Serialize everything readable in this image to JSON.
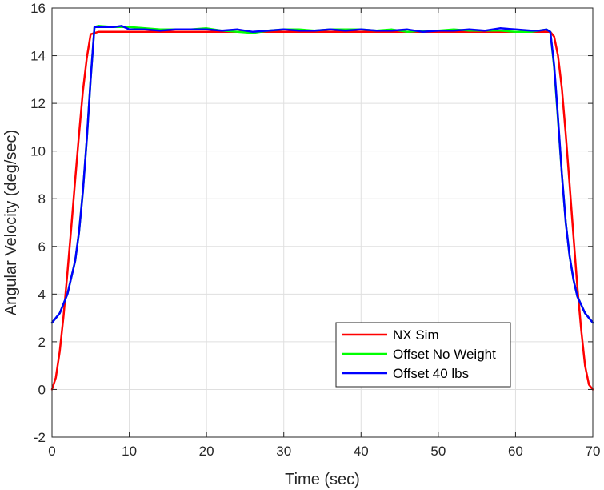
{
  "chart_data": {
    "type": "line",
    "title": "",
    "xlabel": "Time (sec)",
    "ylabel": "Angular Velocity (deg/sec)",
    "xlim": [
      0,
      70
    ],
    "ylim": [
      -2,
      16
    ],
    "xticks": [
      0,
      10,
      20,
      30,
      40,
      50,
      60,
      70
    ],
    "yticks": [
      -2,
      0,
      2,
      4,
      6,
      8,
      10,
      12,
      14,
      16
    ],
    "grid": true,
    "legend_position": "lower-right",
    "colors": {
      "axis": "#262626",
      "grid": "#dfdfdf",
      "background": "#ffffff"
    },
    "series": [
      {
        "name": "NX Sim",
        "color": "#ff0000",
        "x": [
          0,
          0.5,
          1,
          1.5,
          2,
          2.5,
          3,
          3.5,
          4,
          4.5,
          5,
          6,
          10,
          20,
          30,
          40,
          50,
          60,
          64.5,
          65,
          65.5,
          66,
          66.5,
          67,
          67.5,
          68,
          68.5,
          69,
          69.5,
          70
        ],
        "y": [
          0,
          0.5,
          1.6,
          3.1,
          4.9,
          6.8,
          8.8,
          10.7,
          12.5,
          13.9,
          14.9,
          15.0,
          15.0,
          15.0,
          15.0,
          15.0,
          15.0,
          15.0,
          15.0,
          14.8,
          14.0,
          12.6,
          10.7,
          8.6,
          6.4,
          4.3,
          2.5,
          1.0,
          0.2,
          0
        ]
      },
      {
        "name": "Offset No Weight",
        "color": "#00ff00",
        "x": [
          0,
          1,
          2,
          3,
          3.5,
          4,
          4.5,
          5,
          5.5,
          6,
          8,
          10,
          12,
          14,
          16,
          18,
          20,
          22,
          24,
          26,
          28,
          30,
          32,
          34,
          36,
          38,
          40,
          42,
          44,
          46,
          48,
          50,
          52,
          54,
          56,
          58,
          60,
          62,
          63,
          64,
          64.5,
          65,
          65.5,
          66,
          66.5,
          67,
          67.5,
          68,
          69,
          70
        ],
        "y": [
          2.8,
          3.2,
          4.0,
          5.4,
          6.6,
          8.3,
          10.5,
          13.0,
          15.2,
          15.25,
          15.2,
          15.2,
          15.15,
          15.1,
          15.1,
          15.1,
          15.15,
          15.05,
          15.0,
          14.95,
          15.05,
          15.1,
          15.1,
          15.05,
          15.1,
          15.1,
          15.1,
          15.05,
          15.1,
          15.0,
          15.05,
          15.05,
          15.1,
          15.05,
          15.05,
          15.05,
          15.0,
          15.0,
          15.05,
          15.1,
          15.0,
          13.5,
          11.3,
          9.0,
          7.0,
          5.6,
          4.6,
          3.9,
          3.2,
          2.8
        ]
      },
      {
        "name": "Offset 40 lbs",
        "color": "#0000ff",
        "x": [
          0,
          1,
          2,
          3,
          3.5,
          4,
          4.5,
          5,
          5.5,
          6,
          8,
          9,
          10,
          12,
          14,
          16,
          18,
          20,
          22,
          24,
          26,
          28,
          30,
          32,
          34,
          36,
          38,
          40,
          42,
          44,
          46,
          48,
          50,
          52,
          54,
          56,
          58,
          60,
          62,
          63,
          64,
          64.5,
          65,
          65.5,
          66,
          66.5,
          67,
          67.5,
          68,
          69,
          70
        ],
        "y": [
          2.8,
          3.2,
          4.0,
          5.4,
          6.6,
          8.3,
          10.5,
          13.0,
          15.2,
          15.2,
          15.2,
          15.25,
          15.1,
          15.1,
          15.05,
          15.1,
          15.1,
          15.1,
          15.05,
          15.1,
          15.0,
          15.05,
          15.1,
          15.05,
          15.05,
          15.1,
          15.05,
          15.1,
          15.05,
          15.05,
          15.1,
          15.0,
          15.05,
          15.05,
          15.1,
          15.05,
          15.15,
          15.1,
          15.05,
          15.05,
          15.1,
          15.0,
          13.6,
          11.4,
          9.0,
          7.0,
          5.6,
          4.6,
          3.9,
          3.2,
          2.8
        ]
      }
    ]
  }
}
